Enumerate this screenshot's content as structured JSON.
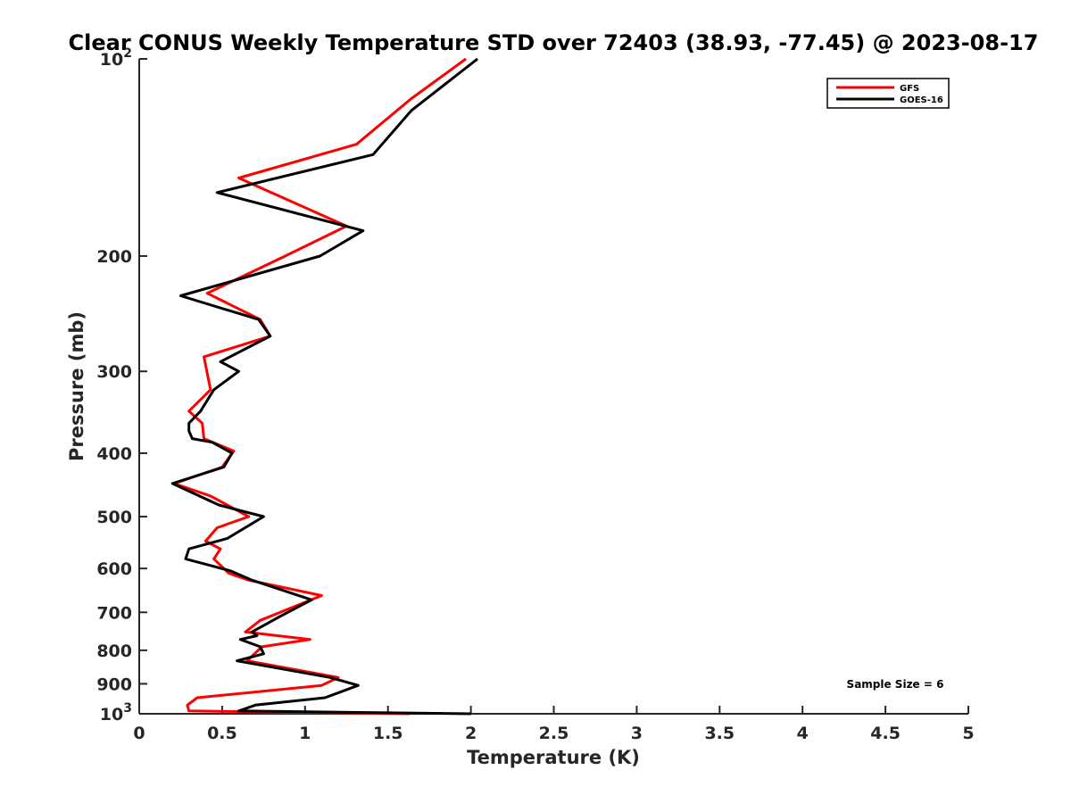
{
  "chart_data": {
    "type": "line",
    "title": "Clear CONUS Weekly Temperature STD over 72403 (38.93, -77.45) @ 2023-08-17",
    "xlabel": "Temperature (K)",
    "ylabel": "Pressure (mb)",
    "xlim": [
      0,
      5
    ],
    "ylim": [
      100,
      1000
    ],
    "yscale": "log",
    "y_reversed": true,
    "x_ticks": [
      "0",
      "0.5",
      "1",
      "1.5",
      "2",
      "2.5",
      "3",
      "3.5",
      "4",
      "4.5",
      "5"
    ],
    "y_ticks": [
      {
        "value": 100,
        "base": "10",
        "exp": "2"
      },
      {
        "value": 200,
        "label": "200"
      },
      {
        "value": 300,
        "label": "300"
      },
      {
        "value": 400,
        "label": "400"
      },
      {
        "value": 500,
        "label": "500"
      },
      {
        "value": 600,
        "label": "600"
      },
      {
        "value": 700,
        "label": "700"
      },
      {
        "value": 800,
        "label": "800"
      },
      {
        "value": 900,
        "label": "900"
      },
      {
        "value": 1000,
        "base": "10",
        "exp": "3"
      }
    ],
    "grid": false,
    "legend_position": "top-right",
    "annotation": "Sample Size = 6",
    "series": [
      {
        "name": "GFS",
        "color": "#ff0000",
        "points": [
          [
            1.97,
            100
          ],
          [
            1.64,
            115
          ],
          [
            1.31,
            135
          ],
          [
            0.6,
            152
          ],
          [
            1.25,
            180
          ],
          [
            0.88,
            200
          ],
          [
            0.41,
            228
          ],
          [
            0.73,
            250
          ],
          [
            0.79,
            265
          ],
          [
            0.39,
            285
          ],
          [
            0.43,
            320
          ],
          [
            0.3,
            345
          ],
          [
            0.38,
            360
          ],
          [
            0.39,
            380
          ],
          [
            0.57,
            397
          ],
          [
            0.5,
            420
          ],
          [
            0.21,
            445
          ],
          [
            0.43,
            465
          ],
          [
            0.66,
            500
          ],
          [
            0.47,
            520
          ],
          [
            0.4,
            545
          ],
          [
            0.49,
            560
          ],
          [
            0.45,
            580
          ],
          [
            0.54,
            610
          ],
          [
            0.66,
            625
          ],
          [
            1.1,
            660
          ],
          [
            0.73,
            720
          ],
          [
            0.64,
            750
          ],
          [
            1.03,
            770
          ],
          [
            0.74,
            790
          ],
          [
            0.65,
            830
          ],
          [
            1.2,
            880
          ],
          [
            1.1,
            905
          ],
          [
            0.35,
            945
          ],
          [
            0.29,
            970
          ],
          [
            0.3,
            990
          ],
          [
            1.63,
            1000
          ]
        ]
      },
      {
        "name": "GOES-16",
        "color": "#000000",
        "points": [
          [
            2.04,
            100
          ],
          [
            1.64,
            120
          ],
          [
            1.41,
            140
          ],
          [
            0.47,
            160
          ],
          [
            1.35,
            183
          ],
          [
            1.09,
            200
          ],
          [
            0.25,
            230
          ],
          [
            0.72,
            250
          ],
          [
            0.79,
            265
          ],
          [
            0.49,
            290
          ],
          [
            0.6,
            300
          ],
          [
            0.45,
            320
          ],
          [
            0.37,
            345
          ],
          [
            0.3,
            360
          ],
          [
            0.3,
            370
          ],
          [
            0.32,
            380
          ],
          [
            0.44,
            385
          ],
          [
            0.56,
            400
          ],
          [
            0.51,
            420
          ],
          [
            0.2,
            445
          ],
          [
            0.48,
            480
          ],
          [
            0.75,
            500
          ],
          [
            0.53,
            540
          ],
          [
            0.3,
            560
          ],
          [
            0.28,
            580
          ],
          [
            0.55,
            605
          ],
          [
            0.68,
            625
          ],
          [
            1.04,
            670
          ],
          [
            0.85,
            710
          ],
          [
            0.68,
            750
          ],
          [
            0.71,
            760
          ],
          [
            0.61,
            770
          ],
          [
            0.73,
            790
          ],
          [
            0.75,
            810
          ],
          [
            0.59,
            830
          ],
          [
            1.15,
            880
          ],
          [
            1.32,
            905
          ],
          [
            1.12,
            945
          ],
          [
            0.7,
            970
          ],
          [
            0.6,
            990
          ],
          [
            2.0,
            1000
          ]
        ]
      }
    ]
  }
}
